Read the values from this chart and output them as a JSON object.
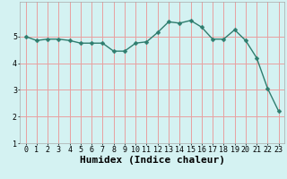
{
  "x": [
    0,
    1,
    2,
    3,
    4,
    5,
    6,
    7,
    8,
    9,
    10,
    11,
    12,
    13,
    14,
    15,
    16,
    17,
    18,
    19,
    20,
    21,
    22,
    23
  ],
  "y": [
    5.0,
    4.85,
    4.9,
    4.9,
    4.85,
    4.75,
    4.75,
    4.75,
    4.45,
    4.45,
    4.75,
    4.8,
    5.15,
    5.55,
    5.5,
    5.6,
    5.35,
    4.9,
    4.9,
    5.25,
    4.85,
    4.2,
    3.05,
    2.2
  ],
  "xlabel": "Humidex (Indice chaleur)",
  "line_color": "#2e7d6e",
  "marker": "D",
  "marker_size": 2.5,
  "background_color": "#d4f2f2",
  "grid_color": "#e8a0a0",
  "ylim": [
    1.5,
    6.3
  ],
  "xlim": [
    -0.5,
    23.5
  ],
  "yticks": [
    1,
    2,
    3,
    4,
    5
  ],
  "xticks": [
    0,
    1,
    2,
    3,
    4,
    5,
    6,
    7,
    8,
    9,
    10,
    11,
    12,
    13,
    14,
    15,
    16,
    17,
    18,
    19,
    20,
    21,
    22,
    23
  ],
  "tick_fontsize": 6,
  "xlabel_fontsize": 8,
  "line_width": 1.0,
  "marker_color": "#2e7d6e"
}
